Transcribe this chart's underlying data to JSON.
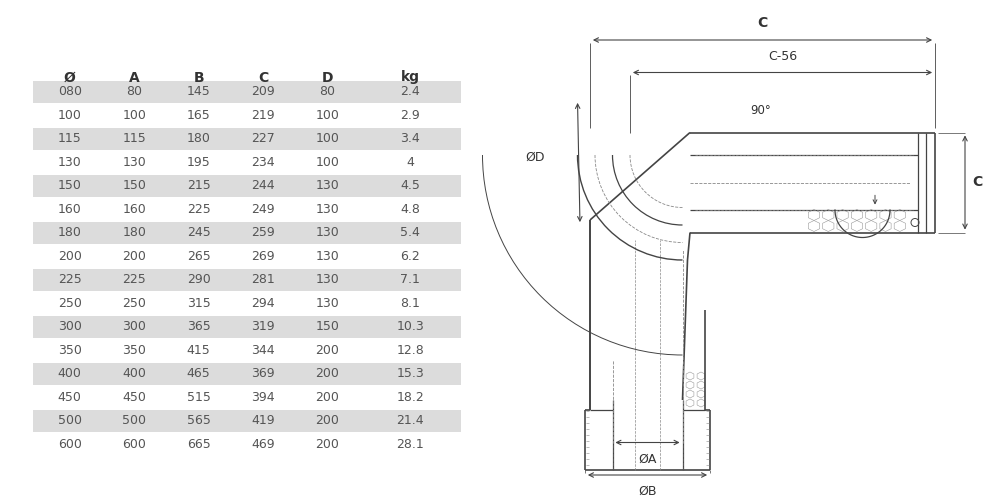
{
  "headers": [
    "Ø",
    "A",
    "B",
    "C",
    "D",
    "kg"
  ],
  "rows": [
    [
      "080",
      "80",
      "145",
      "209",
      "80",
      "2.4"
    ],
    [
      "100",
      "100",
      "165",
      "219",
      "100",
      "2.9"
    ],
    [
      "115",
      "115",
      "180",
      "227",
      "100",
      "3.4"
    ],
    [
      "130",
      "130",
      "195",
      "234",
      "100",
      "4"
    ],
    [
      "150",
      "150",
      "215",
      "244",
      "130",
      "4.5"
    ],
    [
      "160",
      "160",
      "225",
      "249",
      "130",
      "4.8"
    ],
    [
      "180",
      "180",
      "245",
      "259",
      "130",
      "5.4"
    ],
    [
      "200",
      "200",
      "265",
      "269",
      "130",
      "6.2"
    ],
    [
      "225",
      "225",
      "290",
      "281",
      "130",
      "7.1"
    ],
    [
      "250",
      "250",
      "315",
      "294",
      "130",
      "8.1"
    ],
    [
      "300",
      "300",
      "365",
      "319",
      "150",
      "10.3"
    ],
    [
      "350",
      "350",
      "415",
      "344",
      "200",
      "12.8"
    ],
    [
      "400",
      "400",
      "465",
      "369",
      "200",
      "15.3"
    ],
    [
      "450",
      "450",
      "515",
      "394",
      "200",
      "18.2"
    ],
    [
      "500",
      "500",
      "565",
      "419",
      "200",
      "21.4"
    ],
    [
      "600",
      "600",
      "665",
      "469",
      "200",
      "28.1"
    ]
  ],
  "shaded_rows": [
    0,
    2,
    4,
    6,
    8,
    10,
    12,
    14
  ],
  "bg_color": "#ffffff",
  "row_shade_color": "#dcdcdc",
  "text_color": "#555555",
  "header_color": "#333333",
  "line_color": "#444444",
  "diagram_bg": "#ffffff"
}
